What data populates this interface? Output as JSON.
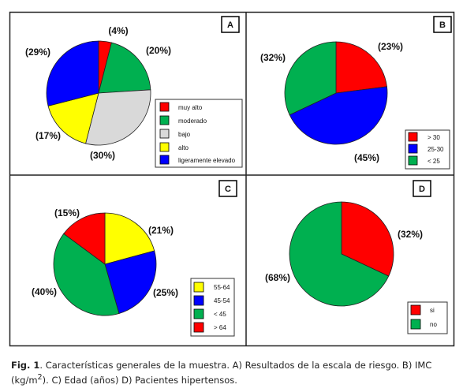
{
  "chart_data": [
    {
      "id": "A",
      "type": "pie",
      "badge": "A",
      "slices": [
        {
          "label": "muy alto",
          "value": 4,
          "color": "#ff0000"
        },
        {
          "label": "moderado",
          "value": 20,
          "color": "#00b050"
        },
        {
          "label": "bajo",
          "value": 30,
          "color": "#d9d9d9"
        },
        {
          "label": "alto",
          "value": 17,
          "color": "#ffff00"
        },
        {
          "label": "ligeramente elevado",
          "value": 29,
          "color": "#0000ff"
        }
      ],
      "pct_labels": [
        "(4%)",
        "(20%)",
        "(30%)",
        "(17%)",
        "(29%)"
      ],
      "legend": [
        "muy alto",
        "moderado",
        "bajo",
        "alto",
        "ligeramente elevado"
      ]
    },
    {
      "id": "B",
      "type": "pie",
      "badge": "B",
      "slices": [
        {
          "label": "> 30",
          "value": 23,
          "color": "#ff0000"
        },
        {
          "label": "25-30",
          "value": 45,
          "color": "#0000ff"
        },
        {
          "label": "< 25",
          "value": 32,
          "color": "#00b050"
        }
      ],
      "pct_labels": [
        "(23%)",
        "(45%)",
        "(32%)"
      ],
      "legend": [
        "> 30",
        "25-30",
        "< 25"
      ]
    },
    {
      "id": "C",
      "type": "pie",
      "badge": "C",
      "slices": [
        {
          "label": "55-64",
          "value": 21,
          "color": "#ffff00"
        },
        {
          "label": "45-54",
          "value": 25,
          "color": "#0000ff"
        },
        {
          "label": "< 45",
          "value": 40,
          "color": "#00b050"
        },
        {
          "label": "> 64",
          "value": 15,
          "color": "#ff0000"
        }
      ],
      "pct_labels": [
        "(21%)",
        "(25%)",
        "(40%)",
        "(15%)"
      ],
      "legend": [
        "55-64",
        "45-54",
        "< 45",
        "> 64"
      ]
    },
    {
      "id": "D",
      "type": "pie",
      "badge": "D",
      "slices": [
        {
          "label": "si",
          "value": 32,
          "color": "#ff0000"
        },
        {
          "label": "no",
          "value": 68,
          "color": "#00b050"
        }
      ],
      "pct_labels": [
        "(32%)",
        "(68%)"
      ],
      "legend": [
        "si",
        "no"
      ]
    }
  ],
  "caption": {
    "fig": "Fig. 1",
    "text_before_sup": ". Características generales de la muestra. A) Resultados de la escala de riesgo. B) IMC (kg/m",
    "sup": "2",
    "text_after_sup": "). C) Edad (años)  D) Pacientes hipertensos."
  }
}
